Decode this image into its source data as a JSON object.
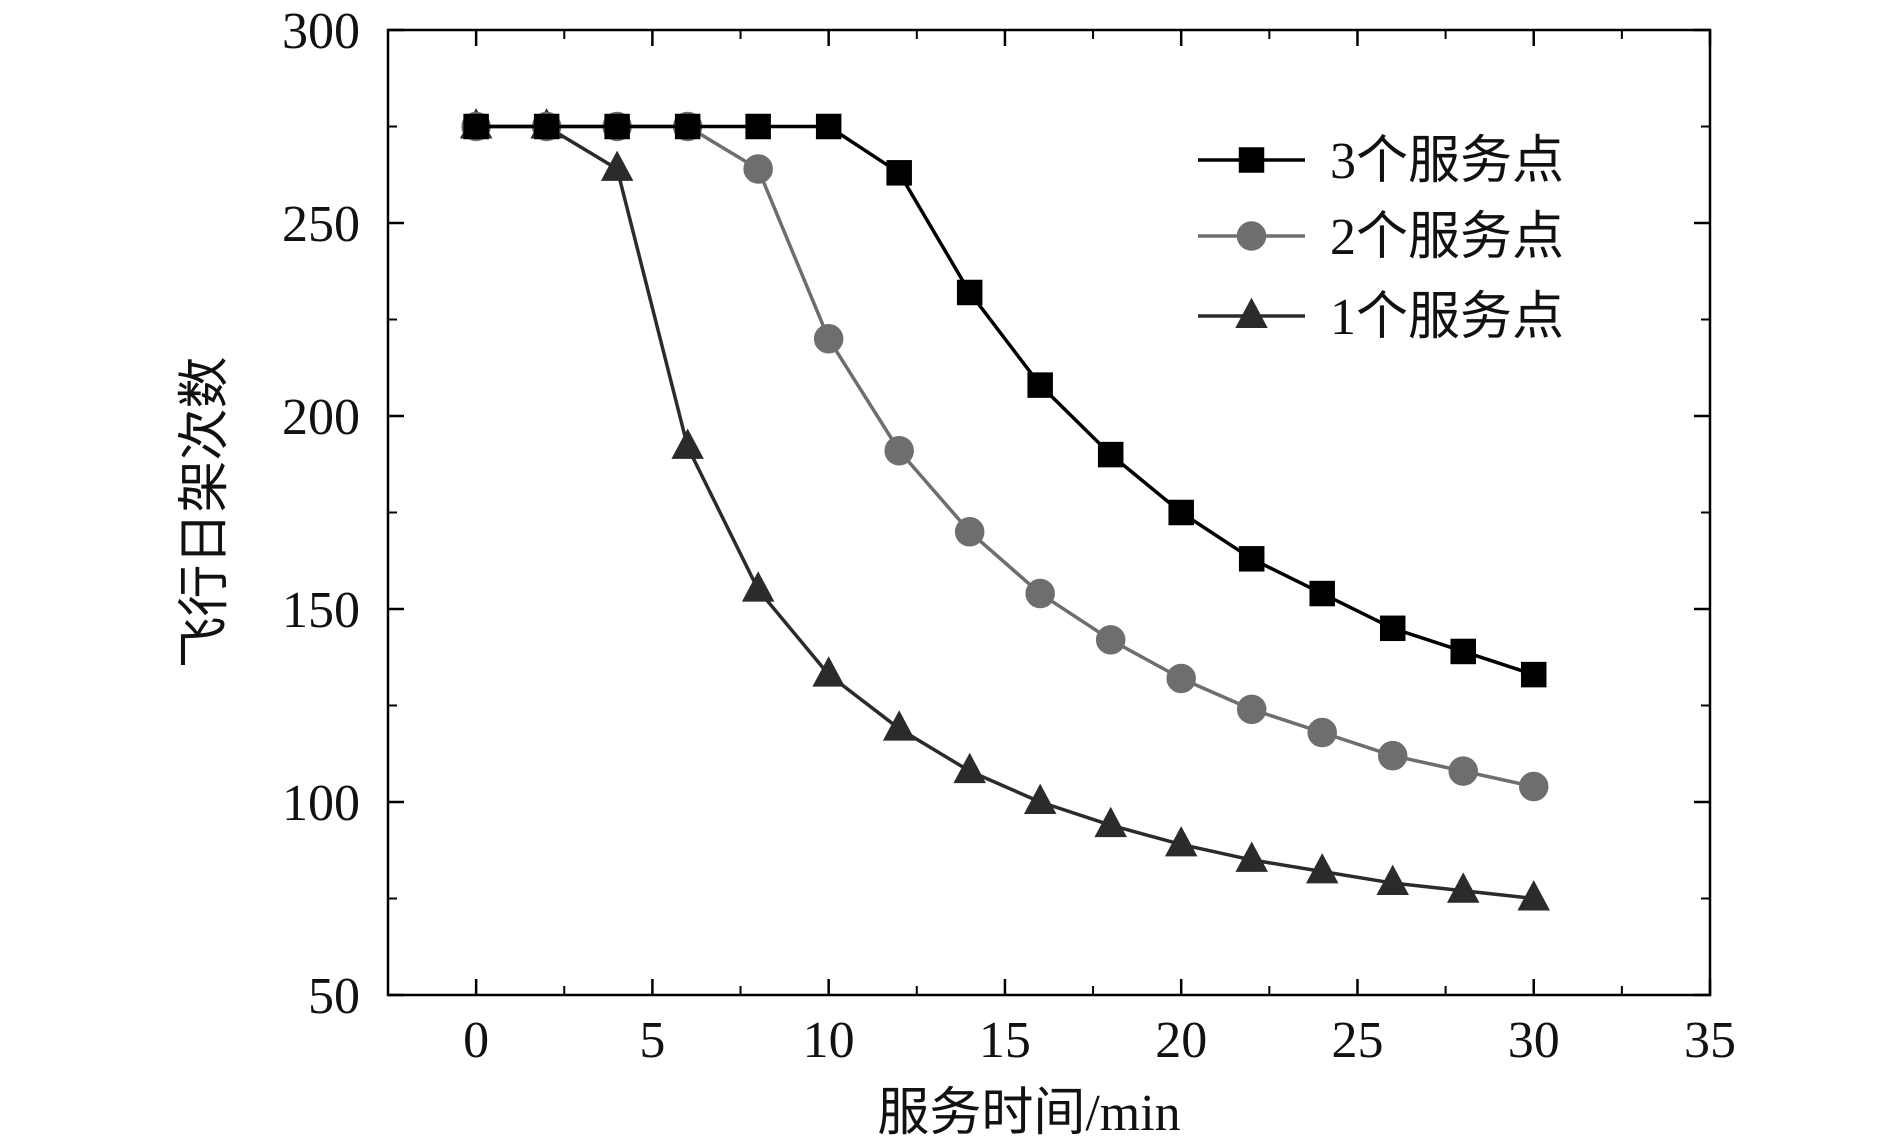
{
  "chart_data": {
    "type": "line",
    "title": "",
    "xlabel": "服务时间/min",
    "ylabel": "飞行日架次数",
    "xlim": [
      -2.5,
      35
    ],
    "ylim": [
      50,
      300
    ],
    "xticks": [
      0,
      5,
      10,
      15,
      20,
      25,
      30,
      35
    ],
    "yticks": [
      50,
      100,
      150,
      200,
      250,
      300
    ],
    "x": [
      0,
      2,
      4,
      6,
      8,
      10,
      12,
      14,
      16,
      18,
      20,
      22,
      24,
      26,
      28,
      30
    ],
    "grid": false,
    "legend_position": "top-right",
    "series": [
      {
        "name": "3个服务点",
        "marker": "square",
        "color": "#000000",
        "values": [
          275,
          275,
          275,
          275,
          275,
          275,
          263,
          232,
          208,
          190,
          175,
          163,
          154,
          145,
          139,
          133
        ]
      },
      {
        "name": "2个服务点",
        "marker": "circle",
        "color": "#6e6e6e",
        "values": [
          275,
          275,
          275,
          275,
          264,
          220,
          191,
          170,
          154,
          142,
          132,
          124,
          118,
          112,
          108,
          104
        ]
      },
      {
        "name": "1个服务点",
        "marker": "triangle",
        "color": "#2b2b2b",
        "values": [
          275,
          275,
          264,
          192,
          155,
          133,
          119,
          108,
          100,
          94,
          89,
          85,
          82,
          79,
          77,
          75
        ]
      }
    ]
  }
}
